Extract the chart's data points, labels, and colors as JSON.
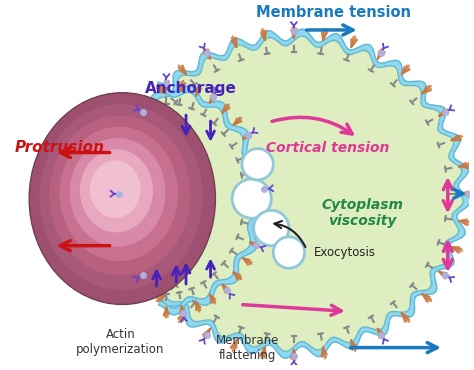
{
  "background_color": "#ffffff",
  "cell_body_color": "#deeec0",
  "cell_membrane_color": "#90d8ee",
  "cell_membrane_edge": "#60b8d8",
  "particle_colors": [
    "#9e5070",
    "#a85878",
    "#b86080",
    "#c87090",
    "#d888a8",
    "#e8a8c0",
    "#f0c0d0"
  ],
  "text_labels": {
    "membrane_tension": "Membrane tension",
    "protrusion": "Protrusion",
    "anchorage": "Anchorage",
    "cortical_tension": "Cortical tension",
    "cytoplasm_viscosity": "Cytoplasm\nviscosity",
    "exocytosis": "Exocytosis",
    "actin_polymerization": "Actin\npolymerization",
    "membrane_flattening": "Membrane\nflattening"
  },
  "label_colors": {
    "membrane_tension": "#1a7abf",
    "protrusion": "#cc1111",
    "anchorage": "#4422bb",
    "cortical_tension": "#e03898",
    "cytoplasm_viscosity": "#228844",
    "exocytosis": "#222222",
    "actin_polymerization": "#333333",
    "membrane_flattening": "#333333"
  },
  "arrow_colors": {
    "blue": "#1a7abf",
    "red": "#cc1111",
    "purple": "#4422bb",
    "pink": "#e03898",
    "black": "#222222"
  },
  "actin_color": "#c87840",
  "linker_color": "#808080",
  "anchor_color": "#6644cc",
  "anchor_ball_color": "#b0b0dd",
  "vesicle_color": "#ffffff",
  "vesicle_edge": "#90c8d8"
}
